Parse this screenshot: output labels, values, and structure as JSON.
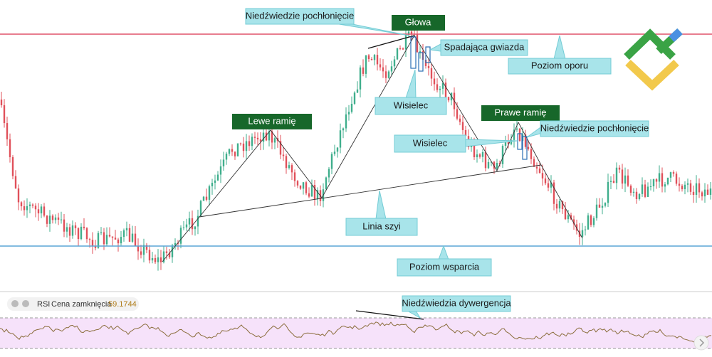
{
  "annotations": {
    "engulfing_top": "Niedźwiedzie pochłonięcie",
    "head": "Głowa",
    "shooting_star": "Spadająca gwiazda",
    "resistance": "Poziom oporu",
    "left_shoulder": "Lewe ramię",
    "hanging_man_top": "Wisielec",
    "right_shoulder": "Prawe ramię",
    "engulfing_right": "Niedźwiedzie pochłonięcie",
    "hanging_man_right": "Wisielec",
    "neckline": "Linia szyi",
    "support": "Poziom wsparcia",
    "divergence": "Niedźwiedzia dywergencja"
  },
  "indicator": {
    "name": "RSI",
    "label": "Cena zamknięcia",
    "value": 59.1744
  }
}
